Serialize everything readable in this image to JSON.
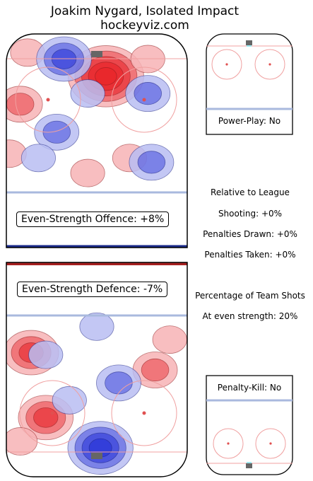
{
  "header": {
    "title": "Joakim Nygard, Isolated Impact",
    "site": "hockeyviz.com"
  },
  "panels": {
    "offence_label": "Even-Strength Offence: +8%",
    "defence_label": "Even-Strength Defence: -7%",
    "powerplay_label": "Power-Play: No",
    "penaltykill_label": "Penalty-Kill: No"
  },
  "stats": {
    "heading": "Relative to League",
    "shooting": "Shooting: +0%",
    "pen_drawn": "Penalties Drawn: +0%",
    "pen_taken": "Penalties Taken: +0%",
    "team_shots_heading": "Percentage of Team Shots",
    "even_strength_share": "At even strength: 20%"
  },
  "colors": {
    "positive": "#e8262b",
    "positive_light": "#f7b3b5",
    "negative": "#2a35d8",
    "negative_light": "#b8bdf2",
    "blue_line": "#a9b9de",
    "red_line": "#f0a0a0",
    "net": "#666666"
  },
  "chart_data": [
    {
      "type": "heatmap",
      "name": "Even-Strength Offence",
      "value_pct": 8,
      "blobs": [
        {
          "sign": 1,
          "x": 0.55,
          "y": 0.2,
          "strength": 5
        },
        {
          "sign": 1,
          "x": 0.08,
          "y": 0.33,
          "strength": 2
        },
        {
          "sign": 1,
          "x": 0.12,
          "y": 0.09,
          "strength": 1
        },
        {
          "sign": 1,
          "x": 0.68,
          "y": 0.58,
          "strength": 1
        },
        {
          "sign": 1,
          "x": 0.02,
          "y": 0.56,
          "strength": 1
        },
        {
          "sign": 1,
          "x": 0.45,
          "y": 0.65,
          "strength": 1
        },
        {
          "sign": 1,
          "x": 0.78,
          "y": 0.12,
          "strength": 1
        },
        {
          "sign": -1,
          "x": 0.32,
          "y": 0.12,
          "strength": 3
        },
        {
          "sign": -1,
          "x": 0.78,
          "y": 0.28,
          "strength": 2
        },
        {
          "sign": -1,
          "x": 0.28,
          "y": 0.46,
          "strength": 2
        },
        {
          "sign": -1,
          "x": 0.8,
          "y": 0.6,
          "strength": 2
        },
        {
          "sign": -1,
          "x": 0.45,
          "y": 0.28,
          "strength": 1
        },
        {
          "sign": -1,
          "x": 0.18,
          "y": 0.58,
          "strength": 1
        }
      ]
    },
    {
      "type": "heatmap",
      "name": "Even-Strength Defence",
      "value_pct": -7,
      "blobs": [
        {
          "sign": 1,
          "x": 0.14,
          "y": 0.42,
          "strength": 3
        },
        {
          "sign": 1,
          "x": 0.22,
          "y": 0.72,
          "strength": 3
        },
        {
          "sign": 1,
          "x": 0.82,
          "y": 0.5,
          "strength": 2
        },
        {
          "sign": 1,
          "x": 0.9,
          "y": 0.36,
          "strength": 1
        },
        {
          "sign": 1,
          "x": 0.08,
          "y": 0.83,
          "strength": 1
        },
        {
          "sign": -1,
          "x": 0.52,
          "y": 0.86,
          "strength": 4
        },
        {
          "sign": -1,
          "x": 0.62,
          "y": 0.56,
          "strength": 2
        },
        {
          "sign": -1,
          "x": 0.22,
          "y": 0.43,
          "strength": 1
        },
        {
          "sign": -1,
          "x": 0.35,
          "y": 0.64,
          "strength": 1
        },
        {
          "sign": -1,
          "x": 0.5,
          "y": 0.3,
          "strength": 1
        }
      ]
    }
  ]
}
